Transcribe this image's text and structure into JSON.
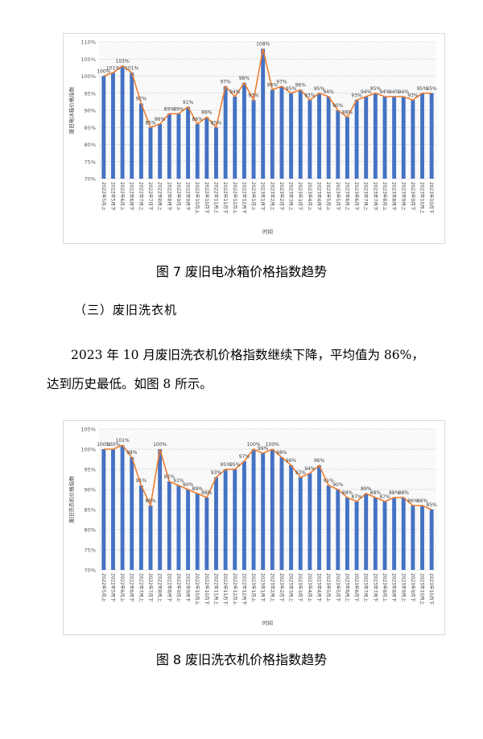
{
  "figure7": {
    "caption": "图 7  废旧电冰箱价格指数趋势",
    "chart_data": {
      "type": "bar",
      "series_type": "bar+line",
      "ylabel": "废旧电冰箱价格指数",
      "xlabel": "时间",
      "ylim": [
        0.7,
        1.1
      ],
      "yticks": [
        "70%",
        "75%",
        "80%",
        "85%",
        "90%",
        "95%",
        "100%",
        "105%",
        "110%"
      ],
      "categories": [
        "2022年5月上",
        "2022年5月下",
        "2022年6月上",
        "2022年6月下",
        "2022年7月上",
        "2022年7月下",
        "2022年8月上",
        "2022年8月下",
        "2022年9月上",
        "2022年9月下",
        "2022年10月上",
        "2022年10月下",
        "2022年11月上",
        "2022年11月下",
        "2022年12月上",
        "2022年12月下",
        "2023年1月上",
        "2023年1月下",
        "2023年2月上",
        "2023年2月下",
        "2023年3月上",
        "2023年3月下",
        "2023年4月上",
        "2023年4月下",
        "2023年5月上",
        "2023年5月下",
        "2023年6月上",
        "2023年6月下",
        "2023年7月上",
        "2023年7月下",
        "2023年8月上",
        "2023年8月下",
        "2023年9月上",
        "2023年9月下",
        "2023年10月上",
        "2023年10月下"
      ],
      "values": [
        1.0,
        1.01,
        1.03,
        1.01,
        0.92,
        0.85,
        0.86,
        0.89,
        0.89,
        0.91,
        0.86,
        0.88,
        0.85,
        0.97,
        0.94,
        0.98,
        0.93,
        1.08,
        0.96,
        0.97,
        0.95,
        0.96,
        0.93,
        0.95,
        0.94,
        0.9,
        0.88,
        0.93,
        0.94,
        0.95,
        0.94,
        0.94,
        0.94,
        0.93,
        0.95,
        0.95
      ],
      "labels": [
        "100%",
        "101%",
        "103%",
        "101%",
        "92%",
        "85%",
        "86%",
        "89%",
        "89%",
        "91%",
        "86%",
        "88%",
        "85%",
        "97%",
        "94%",
        "98%",
        "93%",
        "108%",
        "96%",
        "97%",
        "95%",
        "96%",
        "93%",
        "95%",
        "94%",
        "90%",
        "88%",
        "93%",
        "94%",
        "95%",
        "94%",
        "94%",
        "94%",
        "93%",
        "95%",
        "95%"
      ],
      "bar_color": "#4472c4",
      "line_color": "#ed7d31",
      "grid": true
    }
  },
  "section_heading": "（三）废旧洗衣机",
  "paragraph_line1": "2023 年 10 月废旧洗衣机价格指数继续下降，平均值为 86%，",
  "paragraph_line2": "达到历史最低。如图 8 所示。",
  "figure8": {
    "caption": "图 8  废旧洗衣机价格指数趋势",
    "chart_data": {
      "type": "bar",
      "series_type": "bar+line",
      "ylabel": "废旧洗衣机价格指数",
      "xlabel": "时间",
      "ylim": [
        0.7,
        1.05
      ],
      "yticks": [
        "70%",
        "75%",
        "80%",
        "85%",
        "90%",
        "95%",
        "100%",
        "105%"
      ],
      "categories": [
        "2022年5月上",
        "2022年5月下",
        "2022年6月上",
        "2022年6月下",
        "2022年7月上",
        "2022年7月下",
        "2022年8月上",
        "2022年8月下",
        "2022年9月上",
        "2022年9月下",
        "2022年10月上",
        "2022年10月下",
        "2022年11月上",
        "2022年11月下",
        "2022年12月上",
        "2022年12月下",
        "2023年1月上",
        "2023年1月下",
        "2023年2月上",
        "2023年2月下",
        "2023年3月上",
        "2023年3月下",
        "2023年4月上",
        "2023年4月下",
        "2023年5月上",
        "2023年5月下",
        "2023年6月上",
        "2023年6月下",
        "2023年7月上",
        "2023年7月下",
        "2023年8月上",
        "2023年8月下",
        "2023年9月上",
        "2023年9月下",
        "2023年10月上",
        "2023年10月下"
      ],
      "values": [
        1.0,
        1.0,
        1.01,
        0.98,
        0.91,
        0.86,
        1.0,
        0.92,
        0.91,
        0.9,
        0.89,
        0.88,
        0.93,
        0.95,
        0.95,
        0.97,
        1.0,
        0.99,
        1.0,
        0.98,
        0.96,
        0.93,
        0.94,
        0.96,
        0.91,
        0.9,
        0.88,
        0.87,
        0.89,
        0.88,
        0.87,
        0.88,
        0.88,
        0.86,
        0.86,
        0.85
      ],
      "labels": [
        "100%",
        "100%",
        "101%",
        "98%",
        "91%",
        "86%",
        "100%",
        "92%",
        "91%",
        "90%",
        "89%",
        "88%",
        "93%",
        "95%",
        "95%",
        "97%",
        "100%",
        "99%",
        "100%",
        "98%",
        "96%",
        "93%",
        "94%",
        "96%",
        "91%",
        "90%",
        "88%",
        "87%",
        "89%",
        "88%",
        "87%",
        "88%",
        "88%",
        "86%",
        "86%",
        "85%"
      ],
      "bar_color": "#4472c4",
      "line_color": "#ed7d31",
      "grid": true
    }
  }
}
